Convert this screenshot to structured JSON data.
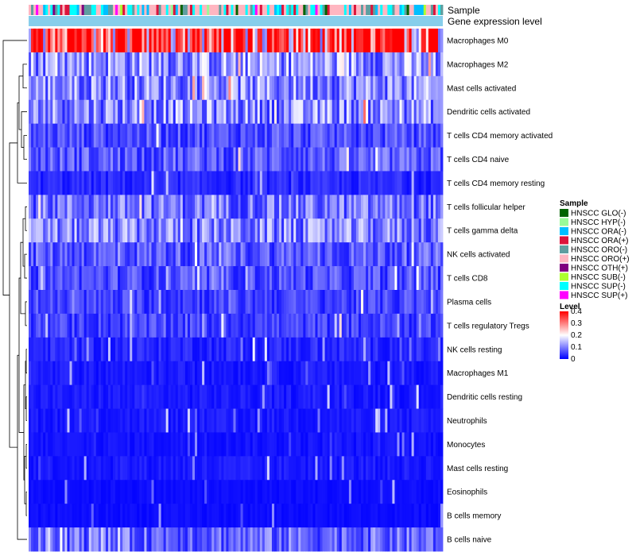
{
  "chart_data": {
    "type": "heatmap",
    "title": "",
    "annotation_tracks": [
      "Sample",
      "Gene expression level"
    ],
    "rows": [
      "Macrophages M0",
      "Macrophages M2",
      "Mast cells activated",
      "Dendritic cells activated",
      "T cells CD4 memory activated",
      "T cells CD4 naive",
      "T cells CD4 memory resting",
      "T cells follicular helper",
      "T cells gamma delta",
      "NK cells activated",
      "T cells CD8",
      "Plasma cells",
      "T cells regulatory  Tregs",
      "NK cells resting",
      "Macrophages M1",
      "Dendritic cells resting",
      "Neutrophils",
      "Monocytes",
      "Mast cells resting",
      "Eosinophils",
      "B cells memory",
      "B cells naive"
    ],
    "row_mean_level": [
      0.33,
      0.12,
      0.11,
      0.11,
      0.06,
      0.07,
      0.03,
      0.09,
      0.1,
      0.07,
      0.06,
      0.05,
      0.05,
      0.03,
      0.02,
      0.02,
      0.02,
      0.015,
      0.02,
      0.01,
      0.01,
      0.08
    ],
    "n_samples": 172,
    "color_scale": {
      "min": 0,
      "max": 0.4,
      "low_color": "#0000ff",
      "mid_color": "#ffffff",
      "high_color": "#ff0000"
    },
    "legend_sample": {
      "title": "Sample",
      "entries": [
        {
          "label": "HNSCC GLO(-)",
          "color": "#006400"
        },
        {
          "label": "HNSCC HYP(-)",
          "color": "#98fb98"
        },
        {
          "label": "HNSCC ORA(-)",
          "color": "#00bfff"
        },
        {
          "label": "HNSCC ORA(+)",
          "color": "#dc143c"
        },
        {
          "label": "HNSCC ORO(-)",
          "color": "#5f9ea0"
        },
        {
          "label": "HNSCC ORO(+)",
          "color": "#ffb6c1"
        },
        {
          "label": "HNSCC OTH(+)",
          "color": "#800080"
        },
        {
          "label": "HNSCC SUB(-)",
          "color": "#adff2f"
        },
        {
          "label": "HNSCC SUP(-)",
          "color": "#00ffff"
        },
        {
          "label": "HNSCC SUP(+)",
          "color": "#ff00ff"
        }
      ]
    },
    "legend_level": {
      "title": "Level",
      "ticks": [
        0.4,
        0.3,
        0.2,
        0.1,
        0
      ],
      "tick_labels": [
        "0.4",
        "0.3",
        "0.2",
        "0.1",
        "0"
      ]
    },
    "gene_expression_color": "#87ceeb"
  }
}
